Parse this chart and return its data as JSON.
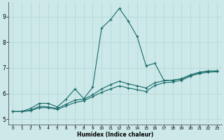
{
  "xlabel": "Humidex (Indice chaleur)",
  "xlim": [
    -0.5,
    23.5
  ],
  "ylim": [
    4.8,
    9.55
  ],
  "xticks": [
    0,
    1,
    2,
    3,
    4,
    5,
    6,
    7,
    8,
    9,
    10,
    11,
    12,
    13,
    14,
    15,
    16,
    17,
    18,
    19,
    20,
    21,
    22,
    23
  ],
  "yticks": [
    5,
    6,
    7,
    8,
    9
  ],
  "bg_color": "#cce8e8",
  "line_color": "#1a6b6b",
  "grid_color": "#b8d8d8",
  "line1_x": [
    0,
    1,
    2,
    3,
    4,
    5,
    6,
    7,
    8,
    9,
    10,
    11,
    12,
    13,
    14,
    15,
    16,
    17,
    18,
    19,
    20,
    21,
    22,
    23
  ],
  "line1_y": [
    5.3,
    5.3,
    5.42,
    5.62,
    5.62,
    5.48,
    5.78,
    6.18,
    5.8,
    6.25,
    8.55,
    8.88,
    9.32,
    8.82,
    8.22,
    7.08,
    7.18,
    6.52,
    6.52,
    6.58,
    6.73,
    6.83,
    6.88,
    6.88
  ],
  "line2_x": [
    0,
    1,
    2,
    3,
    4,
    5,
    6,
    7,
    8,
    9,
    10,
    11,
    12,
    13,
    14,
    15,
    16,
    17,
    18,
    19,
    20,
    21,
    22,
    23
  ],
  "line2_y": [
    5.3,
    5.3,
    5.35,
    5.5,
    5.48,
    5.42,
    5.58,
    5.75,
    5.78,
    5.95,
    6.18,
    6.35,
    6.48,
    6.38,
    6.3,
    6.22,
    6.42,
    6.5,
    6.52,
    6.57,
    6.72,
    6.82,
    6.87,
    6.88
  ],
  "line3_x": [
    0,
    1,
    2,
    3,
    4,
    5,
    6,
    7,
    8,
    9,
    10,
    11,
    12,
    13,
    14,
    15,
    16,
    17,
    18,
    19,
    20,
    21,
    22,
    23
  ],
  "line3_y": [
    5.3,
    5.3,
    5.33,
    5.45,
    5.45,
    5.38,
    5.52,
    5.65,
    5.72,
    5.88,
    6.05,
    6.18,
    6.3,
    6.22,
    6.15,
    6.08,
    6.32,
    6.42,
    6.45,
    6.52,
    6.68,
    6.78,
    6.83,
    6.85
  ]
}
